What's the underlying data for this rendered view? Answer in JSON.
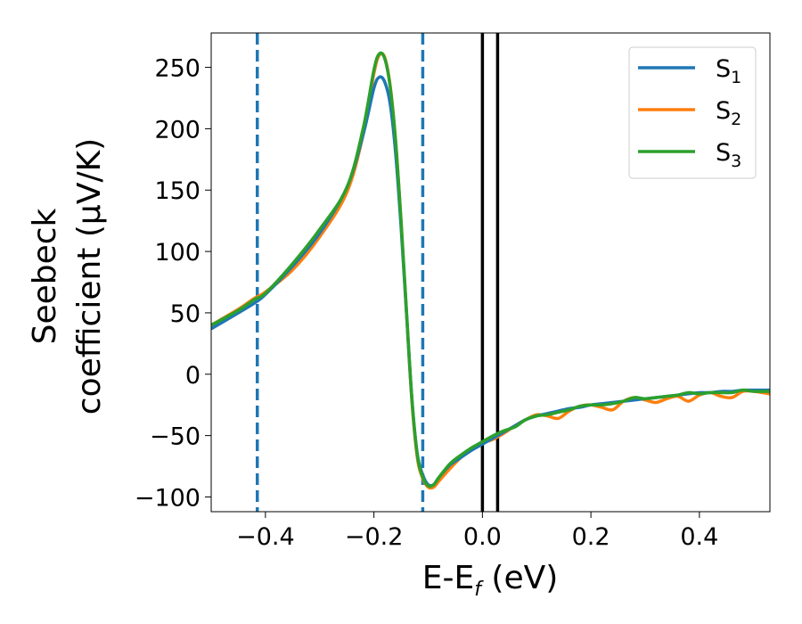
{
  "chart_data": {
    "type": "line",
    "xlabel": "E-E",
    "xlabel_sub": "f",
    "xlabel_unit": " (eV)",
    "ylabel_line1": "Seebeck",
    "ylabel_line2": "coefficient  (μV/K)",
    "xlim": [
      -0.5,
      0.53
    ],
    "ylim": [
      -112,
      278
    ],
    "xticks": [
      -0.4,
      -0.2,
      0.0,
      0.2,
      0.4
    ],
    "xtick_labels": [
      "−0.4",
      "−0.2",
      "0.0",
      "0.2",
      "0.4"
    ],
    "yticks": [
      -100,
      -50,
      0,
      50,
      100,
      150,
      200,
      250
    ],
    "ytick_labels": [
      "−100",
      "−50",
      "0",
      "50",
      "100",
      "150",
      "200",
      "250"
    ],
    "grid": false,
    "legend_position": "top-right",
    "vlines": [
      {
        "x": -0.415,
        "style": "dashed",
        "color": "#1f77b4"
      },
      {
        "x": -0.11,
        "style": "dashed",
        "color": "#1f77b4"
      },
      {
        "x": 0.0,
        "style": "solid",
        "color": "#000000"
      },
      {
        "x": 0.028,
        "style": "solid",
        "color": "#000000"
      }
    ],
    "series": [
      {
        "name": "S",
        "sub": "1",
        "color": "#1f77b4",
        "x": [
          -0.5,
          -0.45,
          -0.42,
          -0.4,
          -0.35,
          -0.3,
          -0.25,
          -0.22,
          -0.2,
          -0.19,
          -0.18,
          -0.17,
          -0.16,
          -0.15,
          -0.14,
          -0.13,
          -0.12,
          -0.11,
          -0.1,
          -0.09,
          -0.08,
          -0.06,
          -0.04,
          -0.02,
          0.0,
          0.02,
          0.04,
          0.06,
          0.08,
          0.1,
          0.12,
          0.14,
          0.16,
          0.18,
          0.2,
          0.22,
          0.24,
          0.26,
          0.28,
          0.3,
          0.32,
          0.34,
          0.36,
          0.38,
          0.4,
          0.42,
          0.44,
          0.46,
          0.48,
          0.5,
          0.53
        ],
        "y": [
          37,
          50,
          58,
          65,
          88,
          115,
          152,
          195,
          233,
          242,
          238,
          220,
          180,
          120,
          50,
          -20,
          -65,
          -82,
          -90,
          -90,
          -84,
          -74,
          -68,
          -62,
          -57,
          -52,
          -47,
          -42,
          -37,
          -34,
          -32,
          -30,
          -28,
          -27,
          -25,
          -24,
          -23,
          -22,
          -21,
          -20,
          -19,
          -18,
          -17,
          -16,
          -15,
          -15,
          -14,
          -14,
          -13,
          -13,
          -13
        ]
      },
      {
        "name": "S",
        "sub": "2",
        "color": "#ff7f0e",
        "x": [
          -0.5,
          -0.45,
          -0.42,
          -0.4,
          -0.35,
          -0.3,
          -0.25,
          -0.22,
          -0.2,
          -0.19,
          -0.18,
          -0.17,
          -0.16,
          -0.15,
          -0.14,
          -0.13,
          -0.12,
          -0.11,
          -0.1,
          -0.09,
          -0.08,
          -0.06,
          -0.04,
          -0.02,
          0.0,
          0.02,
          0.04,
          0.06,
          0.08,
          0.1,
          0.12,
          0.14,
          0.16,
          0.18,
          0.2,
          0.22,
          0.24,
          0.26,
          0.28,
          0.3,
          0.32,
          0.34,
          0.36,
          0.38,
          0.4,
          0.42,
          0.44,
          0.46,
          0.48,
          0.5,
          0.53
        ],
        "y": [
          40,
          53,
          62,
          67,
          85,
          112,
          148,
          195,
          245,
          260,
          258,
          235,
          190,
          125,
          50,
          -22,
          -68,
          -85,
          -92,
          -92,
          -87,
          -77,
          -68,
          -60,
          -56,
          -53,
          -48,
          -42,
          -37,
          -33,
          -34,
          -36,
          -30,
          -26,
          -25,
          -27,
          -29,
          -22,
          -19,
          -21,
          -23,
          -20,
          -18,
          -22,
          -17,
          -15,
          -18,
          -19,
          -14,
          -14,
          -16
        ]
      },
      {
        "name": "S",
        "sub": "3",
        "color": "#2ca02c",
        "x": [
          -0.5,
          -0.45,
          -0.42,
          -0.4,
          -0.35,
          -0.3,
          -0.25,
          -0.22,
          -0.2,
          -0.19,
          -0.18,
          -0.17,
          -0.16,
          -0.15,
          -0.14,
          -0.13,
          -0.12,
          -0.11,
          -0.1,
          -0.09,
          -0.08,
          -0.06,
          -0.04,
          -0.02,
          0.0,
          0.02,
          0.04,
          0.06,
          0.08,
          0.1,
          0.12,
          0.14,
          0.16,
          0.18,
          0.2,
          0.22,
          0.24,
          0.26,
          0.28,
          0.3,
          0.32,
          0.34,
          0.36,
          0.38,
          0.4,
          0.42,
          0.44,
          0.46,
          0.48,
          0.5,
          0.53
        ],
        "y": [
          40,
          52,
          61,
          66,
          90,
          118,
          152,
          200,
          248,
          261,
          257,
          234,
          190,
          125,
          52,
          -20,
          -66,
          -84,
          -91,
          -90,
          -84,
          -73,
          -66,
          -60,
          -55,
          -50,
          -46,
          -43,
          -37,
          -34,
          -33,
          -31,
          -29,
          -26,
          -25,
          -25,
          -24,
          -22,
          -19,
          -20,
          -19,
          -18,
          -17,
          -15,
          -16,
          -15,
          -15,
          -15,
          -13,
          -14,
          -14
        ]
      }
    ]
  }
}
